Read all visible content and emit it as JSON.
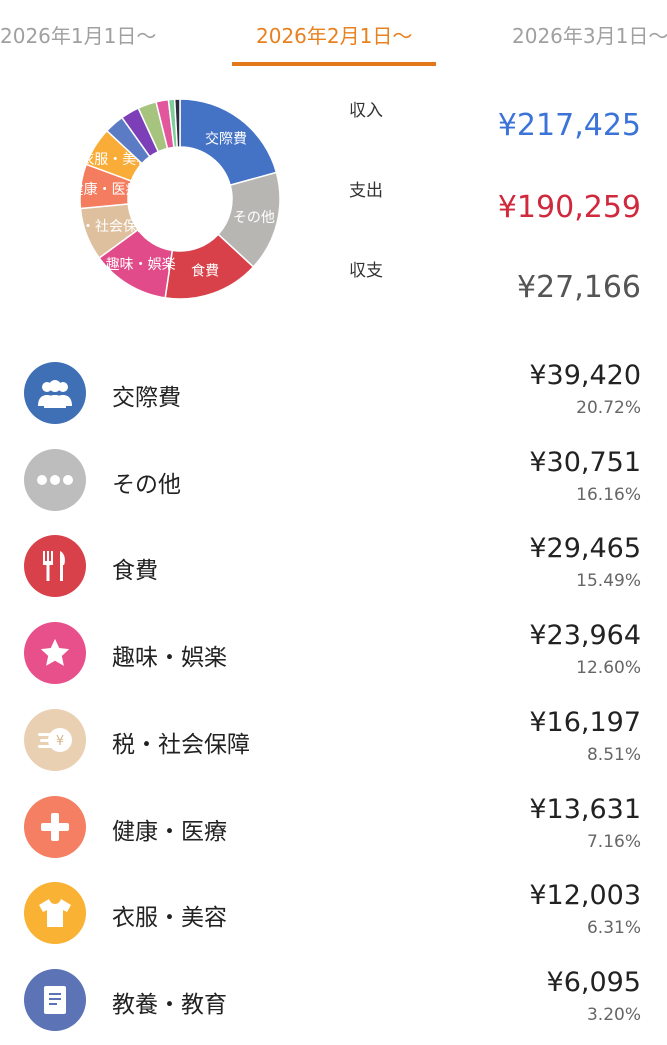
{
  "tabs": [
    {
      "label": "2026年1月1日〜",
      "active": false
    },
    {
      "label": "2026年2月1日〜",
      "active": true
    },
    {
      "label": "2026年3月1日〜",
      "active": false
    }
  ],
  "colors": {
    "accent": "#e2781a",
    "income": "#3b73d9",
    "expense": "#d0283c",
    "balance": "#555555"
  },
  "summary": {
    "income_label": "収入",
    "income": "¥217,425",
    "expense_label": "支出",
    "expense": "¥190,259",
    "balance_label": "収支",
    "balance": "¥27,166"
  },
  "chart_data": {
    "type": "pie",
    "donut": true,
    "slices": [
      {
        "label": "交際費",
        "value": 20.72,
        "color": "#4472c4"
      },
      {
        "label": "その他",
        "value": 16.16,
        "color": "#b8b6b3"
      },
      {
        "label": "食費",
        "value": 15.49,
        "color": "#d9414a"
      },
      {
        "label": "趣味・娯楽",
        "value": 12.6,
        "color": "#e14b8a"
      },
      {
        "label": "税・社会保障",
        "value": 8.51,
        "color": "#dfc09e"
      },
      {
        "label": "健康・医療",
        "value": 7.16,
        "color": "#f47c5f"
      },
      {
        "label": "衣服・美容",
        "value": 6.31,
        "color": "#f9ad38"
      },
      {
        "label": "教養・教育",
        "value": 3.2,
        "color": "#5b7cc4"
      },
      {
        "label": "",
        "value": 3.0,
        "color": "#7d3fb8"
      },
      {
        "label": "",
        "value": 3.0,
        "color": "#a6c47e"
      },
      {
        "label": "",
        "value": 2.0,
        "color": "#e2579c"
      },
      {
        "label": "",
        "value": 1.0,
        "color": "#7ccf9a"
      },
      {
        "label": "",
        "value": 0.85,
        "color": "#2b2b40"
      }
    ]
  },
  "categories": [
    {
      "name": "交際費",
      "amount": "¥39,420",
      "percent": "20.72%",
      "icon": "people-icon",
      "color": "#3f6fb5"
    },
    {
      "name": "その他",
      "amount": "¥30,751",
      "percent": "16.16%",
      "icon": "more-dots-icon",
      "color": "#bdbdbd"
    },
    {
      "name": "食費",
      "amount": "¥29,465",
      "percent": "15.49%",
      "icon": "fork-knife-icon",
      "color": "#d9414a"
    },
    {
      "name": "趣味・娯楽",
      "amount": "¥23,964",
      "percent": "12.60%",
      "icon": "star-icon",
      "color": "#e8508c"
    },
    {
      "name": "税・社会保障",
      "amount": "¥16,197",
      "percent": "8.51%",
      "icon": "yen-coin-icon",
      "color": "#ead0b2"
    },
    {
      "name": "健康・医療",
      "amount": "¥13,631",
      "percent": "7.16%",
      "icon": "medical-cross-icon",
      "color": "#f57f63"
    },
    {
      "name": "衣服・美容",
      "amount": "¥12,003",
      "percent": "6.31%",
      "icon": "tshirt-icon",
      "color": "#f9b233"
    },
    {
      "name": "教養・教育",
      "amount": "¥6,095",
      "percent": "3.20%",
      "icon": "book-icon",
      "color": "#5c73b5"
    }
  ]
}
